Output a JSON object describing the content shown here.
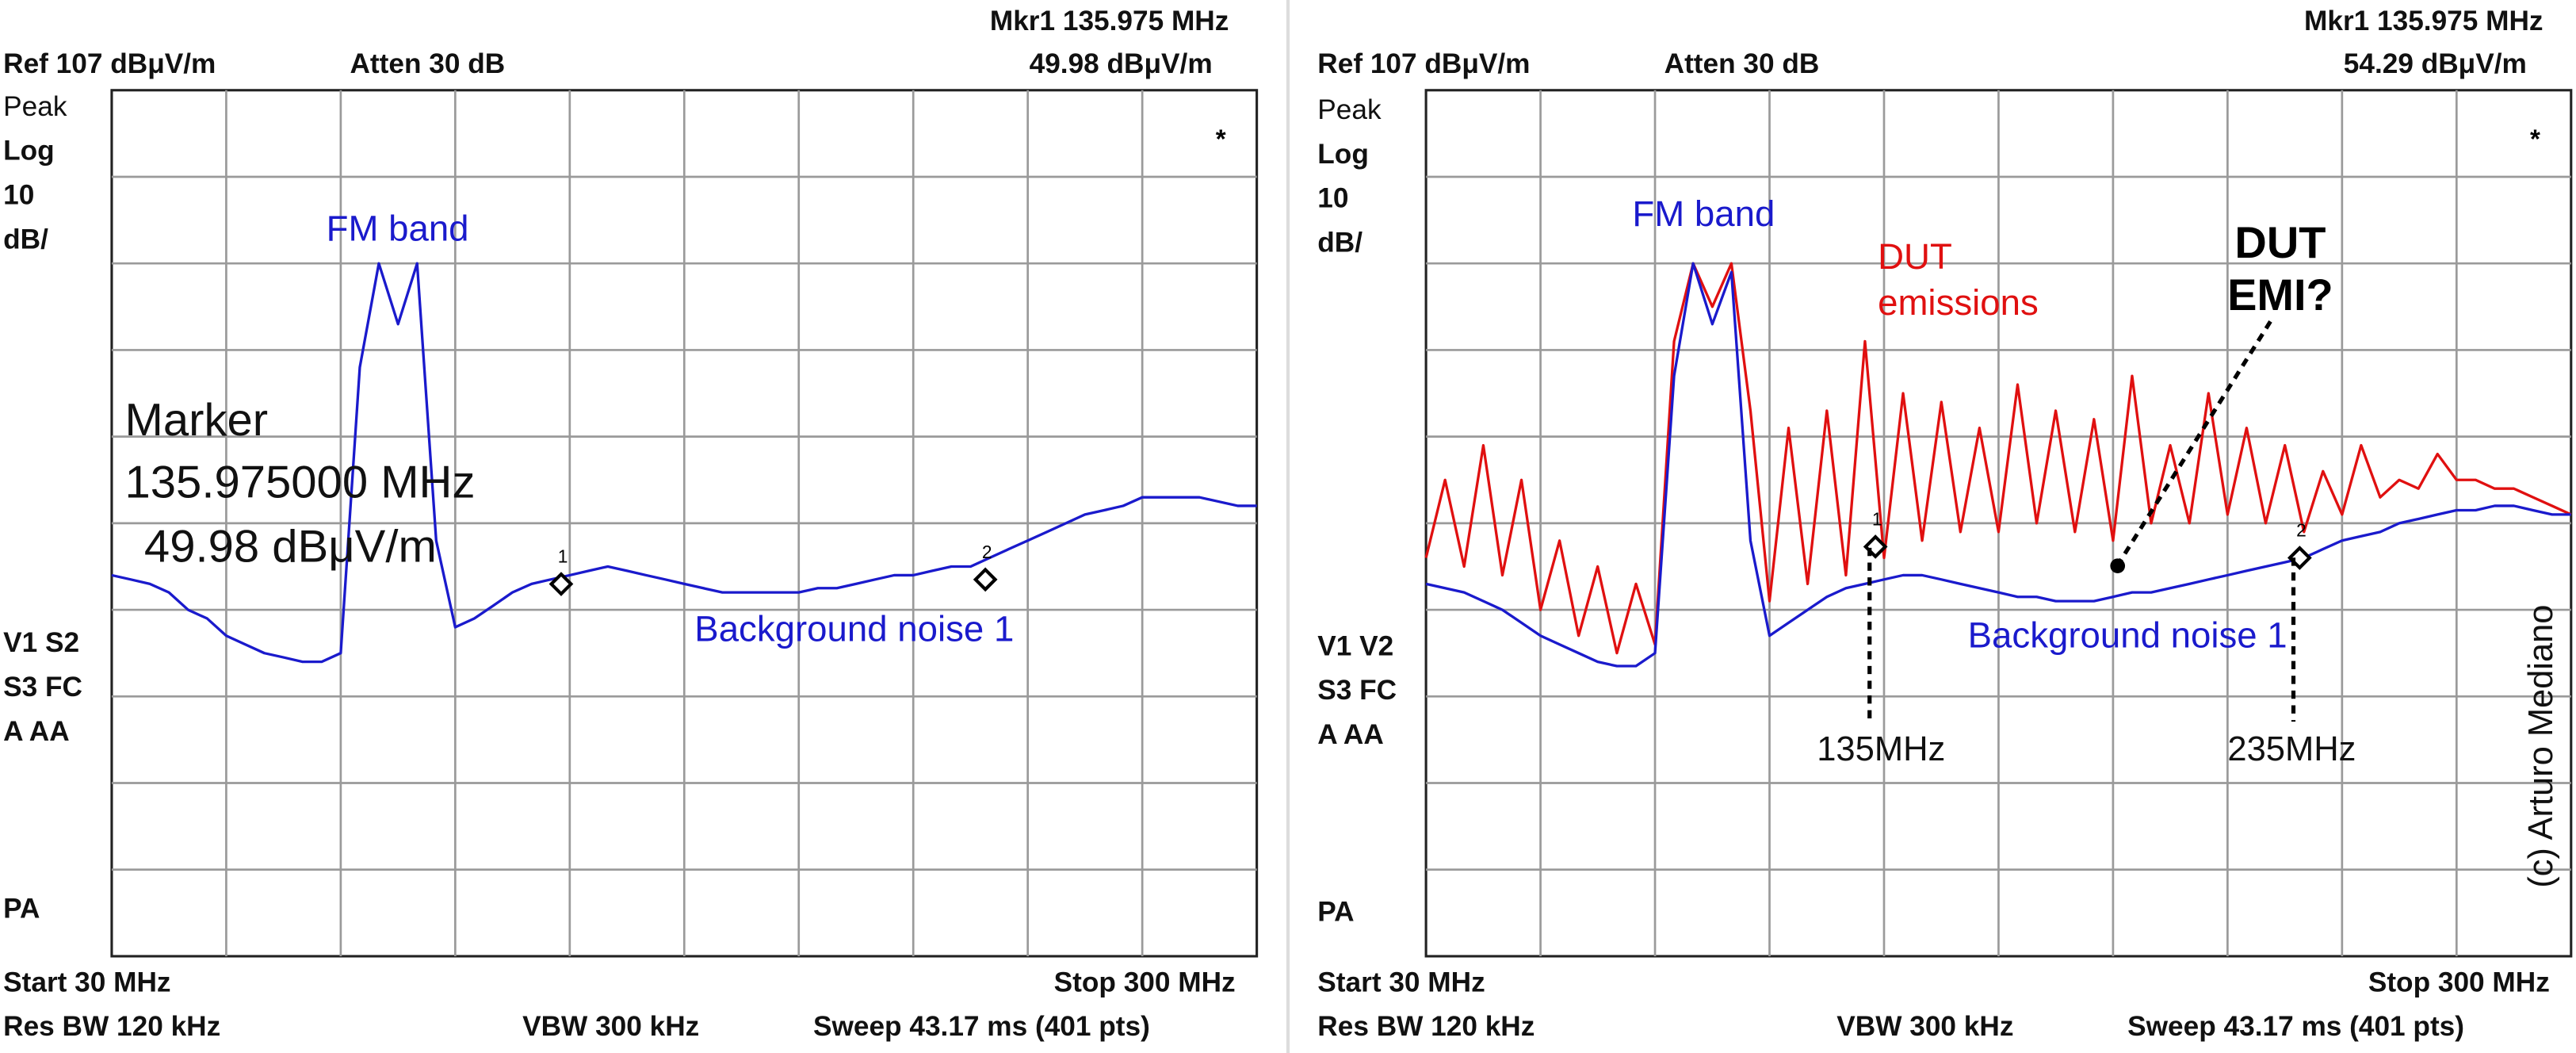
{
  "chart_data": [
    {
      "type": "line",
      "grid": true,
      "header": {
        "marker_readout": "Mkr1  135.975 MHz",
        "ref": "Ref 107 dBμV/m",
        "atten": "Atten 30 dB",
        "marker_value": "49.98 dBμV/m"
      },
      "side_labels": [
        "Peak",
        "Log",
        "10",
        "dB/",
        "V1  S2",
        "S3  FC",
        "A   AA",
        "PA"
      ],
      "footer": {
        "start": "Start 30 MHz",
        "stop": "Stop 300 MHz",
        "rbw": "Res BW 120 kHz",
        "vbw": "VBW 300 kHz",
        "sweep": "Sweep 43.17 ms (401 pts)"
      },
      "star": "*",
      "annotations": [
        {
          "text": "FM band",
          "color": "#1a1acc"
        },
        {
          "text": "Marker",
          "color": "#111111"
        },
        {
          "text": "135.975000 MHz",
          "color": "#111111"
        },
        {
          "text": " 49.98 dBμV/m",
          "color": "#111111"
        },
        {
          "text": "Background noise 1",
          "color": "#1a1acc"
        }
      ],
      "xlim": [
        30,
        300
      ],
      "ylim": [
        7,
        107
      ],
      "x": [
        30,
        34.5,
        39,
        43.5,
        48,
        52.5,
        57,
        61.5,
        66,
        70.5,
        75,
        79.5,
        84,
        88.5,
        93,
        97.5,
        102,
        106.5,
        111,
        115.5,
        120,
        124.5,
        129,
        133.5,
        138,
        142.5,
        147,
        151.5,
        156,
        160.5,
        165,
        169.5,
        174,
        178.5,
        183,
        187.5,
        192,
        196.5,
        201,
        205.5,
        210,
        214.5,
        219,
        223.5,
        228,
        232.5,
        237,
        241.5,
        246,
        250.5,
        255,
        259.5,
        264,
        268.5,
        273,
        277.5,
        282,
        286.5,
        291,
        295.5,
        300
      ],
      "series": [
        {
          "color": "#1a1acc",
          "values": [
            51,
            50.5,
            50,
            49,
            47,
            46,
            44,
            43,
            42,
            41.5,
            41,
            41,
            42,
            75,
            87,
            80,
            87,
            55,
            45,
            46,
            47.5,
            49,
            50,
            50.5,
            51,
            51.5,
            52,
            51.5,
            51,
            50.5,
            50,
            49.5,
            49,
            49,
            49,
            49,
            49,
            49.5,
            49.5,
            50,
            50.5,
            51,
            51,
            51.5,
            52,
            52,
            53,
            54,
            55,
            56,
            57,
            58,
            58.5,
            59,
            60,
            60,
            60,
            60,
            59.5,
            59,
            59
          ]
        }
      ],
      "markers": [
        {
          "label": "1",
          "x": 135.975,
          "y": 49.98
        },
        {
          "label": "2",
          "x": 236,
          "y": 50.5
        }
      ]
    },
    {
      "type": "line",
      "grid": true,
      "header": {
        "marker_readout": "Mkr1  135.975 MHz",
        "ref": "Ref 107 dBμV/m",
        "atten": "Atten 30 dB",
        "marker_value": "54.29 dBμV/m"
      },
      "side_labels": [
        "Peak",
        "Log",
        "10",
        "dB/",
        "V1  V2",
        "S3  FC",
        "A   AA",
        "PA"
      ],
      "footer": {
        "start": "Start 30 MHz",
        "stop": "Stop 300 MHz",
        "rbw": "Res BW 120 kHz",
        "vbw": "VBW 300 kHz",
        "sweep": "Sweep 43.17 ms (401 pts)"
      },
      "star": "*",
      "annotations": [
        {
          "text": "FM band",
          "color": "#1a1acc"
        },
        {
          "text": "DUT",
          "color": "#e01010"
        },
        {
          "text": "emissions",
          "color": "#e01010"
        },
        {
          "text": "DUT",
          "color": "#000000"
        },
        {
          "text": "EMI?",
          "color": "#000000"
        },
        {
          "text": "Background noise 1",
          "color": "#1a1acc"
        },
        {
          "text": "135MHz",
          "color": "#111111"
        },
        {
          "text": "235MHz",
          "color": "#111111"
        },
        {
          "text": "(c) Arturo Mediano",
          "color": "#111111"
        }
      ],
      "xlim": [
        30,
        300
      ],
      "ylim": [
        7,
        107
      ],
      "x": [
        30,
        34.5,
        39,
        43.5,
        48,
        52.5,
        57,
        61.5,
        66,
        70.5,
        75,
        79.5,
        84,
        88.5,
        93,
        97.5,
        102,
        106.5,
        111,
        115.5,
        120,
        124.5,
        129,
        133.5,
        138,
        142.5,
        147,
        151.5,
        156,
        160.5,
        165,
        169.5,
        174,
        178.5,
        183,
        187.5,
        192,
        196.5,
        201,
        205.5,
        210,
        214.5,
        219,
        223.5,
        228,
        232.5,
        237,
        241.5,
        246,
        250.5,
        255,
        259.5,
        264,
        268.5,
        273,
        277.5,
        282,
        286.5,
        291,
        295.5,
        300
      ],
      "series": [
        {
          "color": "#e01010",
          "values": [
            53,
            62,
            52,
            66,
            51,
            62,
            47,
            55,
            44,
            52,
            42,
            50,
            43,
            78,
            87,
            82,
            87,
            70,
            48,
            68,
            50,
            70,
            51,
            78,
            53,
            72,
            55,
            71,
            56,
            68,
            56,
            73,
            57,
            70,
            56,
            69,
            55,
            74,
            57,
            66,
            57,
            72,
            58,
            68,
            57,
            66,
            56,
            63,
            58,
            66,
            60,
            62,
            61,
            65,
            62,
            62,
            61,
            61,
            60,
            59,
            58
          ]
        },
        {
          "color": "#1a1acc",
          "values": [
            50,
            49.5,
            49,
            48,
            47,
            45.5,
            44,
            43,
            42,
            41,
            40.5,
            40.5,
            42,
            74,
            87,
            80,
            86,
            55,
            44,
            45.5,
            47,
            48.5,
            49.5,
            50,
            50.5,
            51,
            51,
            50.5,
            50,
            49.5,
            49,
            48.5,
            48.5,
            48,
            48,
            48,
            48.5,
            49,
            49,
            49.5,
            50,
            50.5,
            51,
            51.5,
            52,
            52.5,
            53,
            54,
            55,
            55.5,
            56,
            57,
            57.5,
            58,
            58.5,
            58.5,
            59,
            59,
            58.5,
            58,
            58
          ]
        }
      ],
      "markers": [
        {
          "label": "1",
          "x": 135.975,
          "y": 54.29
        },
        {
          "label": "2",
          "x": 236,
          "y": 53
        }
      ]
    }
  ]
}
